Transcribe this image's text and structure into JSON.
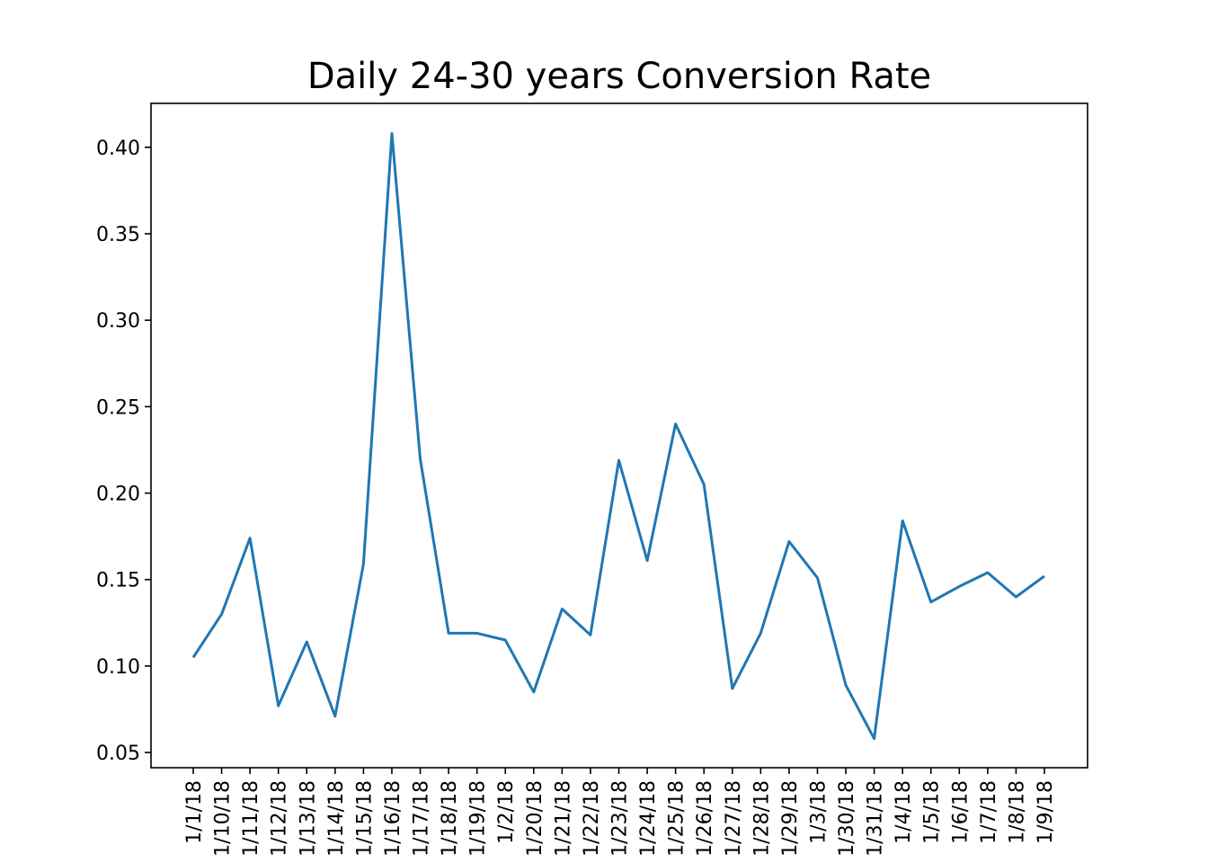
{
  "chart_data": {
    "type": "line",
    "title": "Daily 24-30 years Conversion Rate",
    "xlabel": "",
    "ylabel": "",
    "categories": [
      "1/1/18",
      "1/10/18",
      "1/11/18",
      "1/12/18",
      "1/13/18",
      "1/14/18",
      "1/15/18",
      "1/16/18",
      "1/17/18",
      "1/18/18",
      "1/19/18",
      "1/2/18",
      "1/20/18",
      "1/21/18",
      "1/22/18",
      "1/23/18",
      "1/24/18",
      "1/25/18",
      "1/26/18",
      "1/27/18",
      "1/28/18",
      "1/29/18",
      "1/3/18",
      "1/30/18",
      "1/31/18",
      "1/4/18",
      "1/5/18",
      "1/6/18",
      "1/7/18",
      "1/8/18",
      "1/9/18"
    ],
    "series": [
      {
        "values": [
          0.105,
          0.13,
          0.174,
          0.077,
          0.114,
          0.071,
          0.159,
          0.408,
          0.22,
          0.119,
          0.119,
          0.115,
          0.085,
          0.133,
          0.118,
          0.219,
          0.161,
          0.24,
          0.205,
          0.087,
          0.119,
          0.172,
          0.151,
          0.089,
          0.058,
          0.184,
          0.137,
          0.146,
          0.154,
          0.14,
          0.152
        ],
        "color": "#1f77b4"
      }
    ],
    "yticks": [
      "0.05",
      "0.10",
      "0.15",
      "0.20",
      "0.25",
      "0.30",
      "0.35",
      "0.40"
    ],
    "ylim": [
      0.0412,
      0.4254
    ],
    "grid": false,
    "legend": "none"
  }
}
